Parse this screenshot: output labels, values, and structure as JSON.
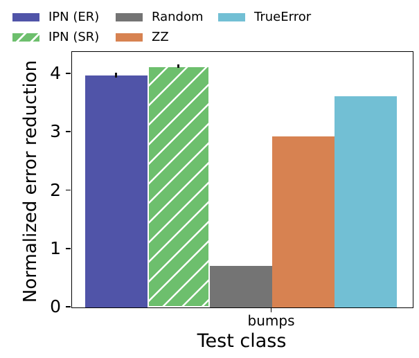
{
  "chart_data": {
    "type": "bar",
    "categories": [
      "bumps"
    ],
    "series": [
      {
        "name": "IPN (ER)",
        "values": [
          3.98
        ],
        "err": [
          0.04
        ],
        "color": "#5054a8",
        "hatch": "none"
      },
      {
        "name": "IPN (SR)",
        "values": [
          4.14
        ],
        "err": [
          0.03
        ],
        "color": "#6dbf6d",
        "hatch": "diagonal-white"
      },
      {
        "name": "Random",
        "values": [
          0.71
        ],
        "err": [
          0
        ],
        "color": "#747474",
        "hatch": "none"
      },
      {
        "name": "ZZ",
        "values": [
          2.93
        ],
        "err": [
          0
        ],
        "color": "#d78251",
        "hatch": "none"
      },
      {
        "name": "TrueError",
        "values": [
          3.62
        ],
        "err": [
          0
        ],
        "color": "#72bfd4",
        "hatch": "none"
      }
    ],
    "title": "",
    "xlabel": "Test class",
    "ylabel": "Normalized error reduction",
    "ylim": [
      0,
      4.38
    ],
    "yticks": [
      0,
      1,
      2,
      3,
      4
    ],
    "grid": false,
    "legend_position": "top",
    "spine_color": "#000000",
    "background_color": "#ffffff"
  }
}
